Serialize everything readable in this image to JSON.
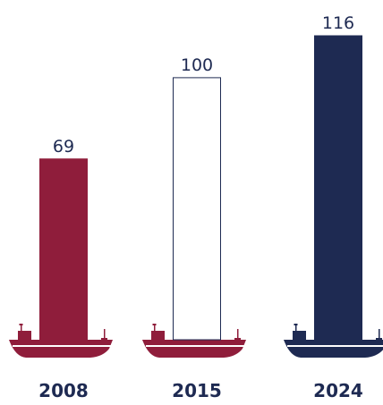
{
  "chart_data": {
    "type": "bar",
    "categories": [
      "2008",
      "2015",
      "2024"
    ],
    "values": [
      69,
      100,
      116
    ],
    "value_labels": [
      "69",
      "100",
      "116"
    ],
    "title": "",
    "xlabel": "",
    "ylabel": "",
    "ylim": [
      0,
      116
    ],
    "grid": false,
    "legend": "none",
    "bar_fills": [
      "#8f1d3b",
      "#ffffff",
      "#1e2a52"
    ],
    "bar_strokes": [
      "#8f1d3b",
      "#1e2a52",
      "#1e2a52"
    ],
    "ship_colors": [
      "#8f1d3b",
      "#8f1d3b",
      "#1e2a52"
    ],
    "icon": "cargo-ship-icon"
  }
}
